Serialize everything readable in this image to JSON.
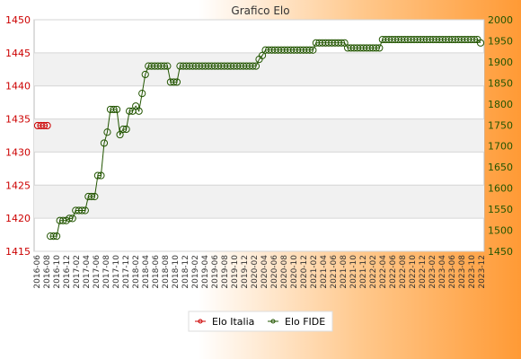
{
  "chart_data": {
    "type": "line",
    "title": "Grafico Elo",
    "y_left": {
      "ylim": [
        1415,
        1450
      ],
      "ticks": [
        1415,
        1420,
        1425,
        1430,
        1435,
        1440,
        1445,
        1450
      ],
      "color": "#cc0000"
    },
    "y_right": {
      "ylim": [
        1450,
        2000
      ],
      "ticks": [
        1450,
        1500,
        1550,
        1600,
        1650,
        1700,
        1750,
        1800,
        1850,
        1900,
        1950,
        2000
      ],
      "color": "#225500"
    },
    "x_labels": [
      "2016-06",
      "2016-08",
      "2016-10",
      "2016-12",
      "2017-02",
      "2017-04",
      "2017-06",
      "2017-08",
      "2017-10",
      "2017-12",
      "2018-02",
      "2018-04",
      "2018-06",
      "2018-08",
      "2018-10",
      "2018-12",
      "2019-02",
      "2019-04",
      "2019-06",
      "2019-08",
      "2019-10",
      "2019-12",
      "2020-02",
      "2020-04",
      "2020-06",
      "2020-08",
      "2020-10",
      "2020-12",
      "2021-02",
      "2021-04",
      "2021-06",
      "2021-08",
      "2021-10",
      "2021-12",
      "2022-02",
      "2022-04",
      "2022-06",
      "2022-08",
      "2022-10",
      "2022-12",
      "2023-02",
      "2023-04",
      "2023-06",
      "2023-08",
      "2023-10",
      "2023-12"
    ],
    "series": [
      {
        "name": "Elo Italia",
        "axis": "left",
        "color": "#cc0000",
        "values": [
          1434,
          1434,
          1434,
          1434
        ]
      },
      {
        "name": "Elo FIDE",
        "axis": "right",
        "color": "#225500",
        "offset": 4,
        "values": [
          1486,
          1486,
          1486,
          1523,
          1523,
          1523,
          1528,
          1528,
          1547,
          1547,
          1547,
          1547,
          1580,
          1580,
          1580,
          1630,
          1630,
          1707,
          1733,
          1787,
          1787,
          1787,
          1727,
          1740,
          1740,
          1783,
          1783,
          1795,
          1783,
          1825,
          1870,
          1890,
          1890,
          1890,
          1890,
          1890,
          1890,
          1890,
          1852,
          1852,
          1852,
          1890,
          1890,
          1890,
          1890,
          1890,
          1890,
          1890,
          1890,
          1890,
          1890,
          1890,
          1890,
          1890,
          1890,
          1890,
          1890,
          1890,
          1890,
          1890,
          1890,
          1890,
          1890,
          1890,
          1890,
          1890,
          1906,
          1915,
          1928,
          1928,
          1928,
          1928,
          1928,
          1928,
          1928,
          1928,
          1928,
          1928,
          1928,
          1928,
          1928,
          1928,
          1928,
          1928,
          1945,
          1945,
          1945,
          1945,
          1945,
          1945,
          1945,
          1945,
          1945,
          1945,
          1933,
          1933,
          1933,
          1933,
          1933,
          1933,
          1933,
          1933,
          1933,
          1933,
          1933,
          1953,
          1953,
          1953,
          1953,
          1953,
          1953,
          1953,
          1953,
          1953,
          1953,
          1953,
          1953,
          1953,
          1953,
          1953,
          1953,
          1953,
          1953,
          1953,
          1953,
          1953,
          1953,
          1953,
          1953,
          1953,
          1953,
          1953,
          1953,
          1953,
          1953,
          1953,
          1945
        ]
      }
    ],
    "legend": {
      "placement": "bottom-center",
      "entries": [
        "Elo Italia",
        "Elo FIDE"
      ]
    },
    "grid": true
  }
}
